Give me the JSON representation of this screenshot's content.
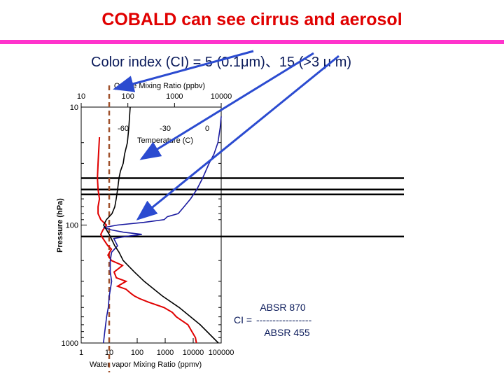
{
  "slide": {
    "title": "COBALD can see cirrus and aerosol",
    "subtitle": "Color index (CI) = 5 (0.1μm)、15 (>3 μ m)",
    "formula": {
      "numerator": "ABSR 870",
      "lhs": "CI =",
      "bar": "-----------------",
      "denominator": "ABSR 455"
    }
  },
  "chart_data": {
    "type": "line",
    "y_axis": {
      "label": "Pressure (hPa)",
      "scale": "log",
      "range": [
        1000,
        10
      ],
      "ticks": [
        "10",
        "100",
        "1000"
      ]
    },
    "x_axis_bottom": {
      "label": "Water vapor Mixing Ratio (ppmv)",
      "scale": "log",
      "range": [
        1,
        100000
      ],
      "ticks": [
        "1",
        "10",
        "100",
        "1000",
        "10000",
        "100000"
      ]
    },
    "x_axis_top": {
      "label": "Ozone Mixing Ratio (ppbv)",
      "scale": "log",
      "range": [
        10,
        10000
      ],
      "ticks": [
        "10",
        "100",
        "1000",
        "10000"
      ]
    },
    "x_axis_inner": {
      "label": "Temperature (C)",
      "range": [
        -90,
        10
      ],
      "ticks": [
        "-60",
        "-30",
        "0"
      ],
      "tick_values": [
        -60,
        -30,
        0
      ]
    },
    "series": [
      {
        "color": "#e00000",
        "axis": "water_vapor",
        "points": [
          [
            1000,
            13000
          ],
          [
            900,
            12000
          ],
          [
            800,
            9000
          ],
          [
            700,
            6500
          ],
          [
            600,
            2500
          ],
          [
            550,
            1800
          ],
          [
            500,
            900
          ],
          [
            450,
            250
          ],
          [
            420,
            120
          ],
          [
            400,
            80
          ],
          [
            380,
            60
          ],
          [
            350,
            40
          ],
          [
            330,
            20
          ],
          [
            300,
            40
          ],
          [
            280,
            18
          ],
          [
            250,
            15
          ],
          [
            220,
            30
          ],
          [
            200,
            12
          ],
          [
            180,
            9
          ],
          [
            160,
            12
          ],
          [
            150,
            9
          ],
          [
            130,
            6
          ],
          [
            120,
            5
          ],
          [
            110,
            6
          ],
          [
            100,
            8
          ],
          [
            90,
            5
          ],
          [
            80,
            4
          ],
          [
            70,
            4
          ],
          [
            60,
            4.5
          ],
          [
            50,
            4
          ],
          [
            40,
            3.8
          ],
          [
            30,
            4
          ],
          [
            22,
            4.3
          ],
          [
            18,
            4.5
          ]
        ]
      },
      {
        "color": "#1a1aa0",
        "axis": "ozone",
        "points": [
          [
            1000,
            30
          ],
          [
            800,
            32
          ],
          [
            600,
            35
          ],
          [
            500,
            38
          ],
          [
            400,
            40
          ],
          [
            300,
            45
          ],
          [
            250,
            42
          ],
          [
            200,
            42
          ],
          [
            170,
            45
          ],
          [
            150,
            60
          ],
          [
            130,
            50
          ],
          [
            125,
            90
          ],
          [
            120,
            200
          ],
          [
            115,
            80
          ],
          [
            110,
            45
          ],
          [
            105,
            30
          ],
          [
            100,
            60
          ],
          [
            95,
            220
          ],
          [
            90,
            600
          ],
          [
            85,
            700
          ],
          [
            80,
            1200
          ],
          [
            70,
            1600
          ],
          [
            60,
            2200
          ],
          [
            50,
            3000
          ],
          [
            40,
            4000
          ],
          [
            30,
            5500
          ],
          [
            25,
            7000
          ],
          [
            20,
            8500
          ],
          [
            15,
            9500
          ],
          [
            12,
            10000
          ]
        ]
      },
      {
        "color": "#000000",
        "axis": "temperature",
        "points": [
          [
            1000,
            8
          ],
          [
            700,
            -5
          ],
          [
            500,
            -20
          ],
          [
            400,
            -32
          ],
          [
            300,
            -45
          ],
          [
            250,
            -52
          ],
          [
            200,
            -60
          ],
          [
            170,
            -63
          ],
          [
            150,
            -66
          ],
          [
            120,
            -70
          ],
          [
            100,
            -74
          ],
          [
            90,
            -72
          ],
          [
            80,
            -68
          ],
          [
            70,
            -66
          ],
          [
            60,
            -65
          ],
          [
            50,
            -64
          ],
          [
            40,
            -63
          ],
          [
            35,
            -62
          ],
          [
            30,
            -60
          ],
          [
            25,
            -59
          ],
          [
            20,
            -57
          ],
          [
            15,
            -56
          ],
          [
            10,
            -55
          ]
        ]
      }
    ],
    "reference_lines_hpa": [
      40,
      50,
      55,
      125
    ],
    "dashed_vertical": {
      "color": "#a0522d",
      "water_vapor_ppmv": 10
    }
  }
}
